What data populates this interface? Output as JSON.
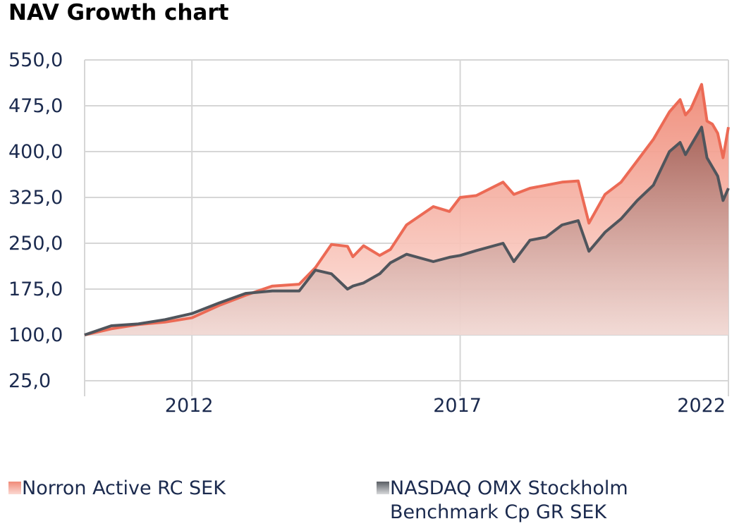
{
  "chart_data": {
    "type": "area",
    "title": "NAV Growth chart",
    "xlabel": "",
    "ylabel": "",
    "xlim": [
      2010.0,
      2022.0
    ],
    "ylim": [
      25.0,
      550.0
    ],
    "y_ticks": [
      25,
      100,
      175,
      250,
      325,
      400,
      475,
      550
    ],
    "y_tick_labels": [
      "25,0",
      "100,0",
      "175,0",
      "250,0",
      "325,0",
      "400,0",
      "475,0",
      "550,0"
    ],
    "x_ticks": [
      2012,
      2017,
      2022
    ],
    "x_tick_labels": [
      "2012",
      "2017",
      "2022"
    ],
    "grid": true,
    "legend_position": "bottom",
    "series": [
      {
        "name": "Norron Active RC SEK",
        "color": "#ec6a55",
        "x": [
          2010.0,
          2010.5,
          2011.0,
          2011.5,
          2012.0,
          2012.5,
          2013.0,
          2013.5,
          2014.0,
          2014.3,
          2014.6,
          2014.9,
          2015.0,
          2015.2,
          2015.5,
          2015.7,
          2016.0,
          2016.5,
          2016.8,
          2017.0,
          2017.3,
          2017.8,
          2018.0,
          2018.3,
          2018.6,
          2018.9,
          2019.2,
          2019.4,
          2019.7,
          2020.0,
          2020.3,
          2020.6,
          2020.9,
          2021.1,
          2021.2,
          2021.3,
          2021.5,
          2021.6,
          2021.7,
          2021.8,
          2021.9,
          2022.0
        ],
        "values": [
          100,
          110,
          117,
          121,
          128,
          148,
          165,
          180,
          183,
          210,
          248,
          245,
          228,
          246,
          230,
          240,
          280,
          310,
          302,
          325,
          328,
          350,
          330,
          340,
          345,
          350,
          352,
          283,
          330,
          350,
          385,
          420,
          465,
          485,
          460,
          470,
          510,
          450,
          445,
          430,
          390,
          440
        ]
      },
      {
        "name": "NASDAQ OMX Stockholm Benchmark Cp GR SEK",
        "color": "#50555c",
        "x": [
          2010.0,
          2010.5,
          2011.0,
          2011.5,
          2012.0,
          2012.5,
          2013.0,
          2013.5,
          2014.0,
          2014.3,
          2014.6,
          2014.9,
          2015.0,
          2015.2,
          2015.5,
          2015.7,
          2016.0,
          2016.5,
          2016.8,
          2017.0,
          2017.3,
          2017.8,
          2018.0,
          2018.3,
          2018.6,
          2018.9,
          2019.2,
          2019.4,
          2019.7,
          2020.0,
          2020.3,
          2020.6,
          2020.9,
          2021.1,
          2021.2,
          2021.3,
          2021.5,
          2021.6,
          2021.7,
          2021.8,
          2021.9,
          2022.0
        ],
        "values": [
          100,
          115,
          118,
          125,
          135,
          152,
          168,
          172,
          172,
          206,
          200,
          175,
          180,
          185,
          200,
          218,
          232,
          220,
          227,
          230,
          238,
          250,
          220,
          255,
          260,
          280,
          287,
          237,
          268,
          290,
          320,
          345,
          400,
          415,
          395,
          410,
          440,
          390,
          375,
          360,
          320,
          340
        ]
      }
    ]
  }
}
